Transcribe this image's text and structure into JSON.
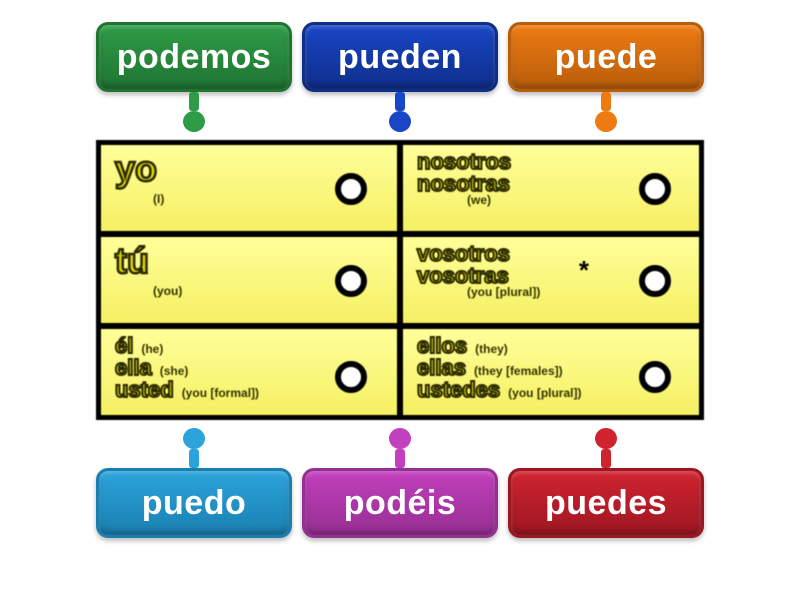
{
  "chips_top": [
    {
      "pre": "",
      "bold": "",
      "post": "podemos",
      "color": "#2e9c46",
      "shadow": "#1f7432"
    },
    {
      "pre": "p",
      "bold": "ue",
      "post": "den",
      "color": "#1946c7",
      "shadow": "#0f2e8a"
    },
    {
      "pre": "p",
      "bold": "ue",
      "post": "de",
      "color": "#ee7b12",
      "shadow": "#b85d0a"
    }
  ],
  "chips_bottom": [
    {
      "pre": "p",
      "bold": "ue",
      "post": "do",
      "color": "#2ba4dc",
      "shadow": "#1a7fb0"
    },
    {
      "pre": "",
      "bold": "",
      "post": "podéis",
      "color": "#c23fbd",
      "shadow": "#962f92"
    },
    {
      "pre": "p",
      "bold": "ue",
      "post": "des",
      "color": "#d02330",
      "shadow": "#9d1722"
    }
  ],
  "table": {
    "background": "#000000",
    "cell_gradient_top": "#ffff9a",
    "cell_gradient_bottom": "#f6f063",
    "rows": [
      {
        "left": {
          "lines": [
            {
              "pronoun": "yo",
              "gloss": "(I)"
            }
          ]
        },
        "right": {
          "lines": [
            {
              "pronoun": "nosotros",
              "gloss": ""
            },
            {
              "pronoun": "nosotras",
              "gloss": ""
            }
          ],
          "under": "(we)"
        }
      },
      {
        "left": {
          "lines": [
            {
              "pronoun": "tú",
              "gloss": "(you)"
            }
          ]
        },
        "right": {
          "lines": [
            {
              "pronoun": "vosotros",
              "gloss": ""
            },
            {
              "pronoun": "vosotras",
              "gloss": ""
            }
          ],
          "under": "(you [plural])",
          "asterisk": "*"
        }
      },
      {
        "left": {
          "lines": [
            {
              "pronoun": "él",
              "gloss": "(he)"
            },
            {
              "pronoun": "ella",
              "gloss": "(she)"
            },
            {
              "pronoun": "usted",
              "gloss": "(you [formal])"
            }
          ]
        },
        "right": {
          "lines": [
            {
              "pronoun": "ellos",
              "gloss": "(they)"
            },
            {
              "pronoun": "ellas",
              "gloss": "(they [females])"
            },
            {
              "pronoun": "ustedes",
              "gloss": "(you [plural])"
            }
          ]
        }
      }
    ]
  },
  "pointer_stem_height": 18,
  "pointer_ball_size": 22,
  "chip_height": 70,
  "chip_font_size": 34
}
